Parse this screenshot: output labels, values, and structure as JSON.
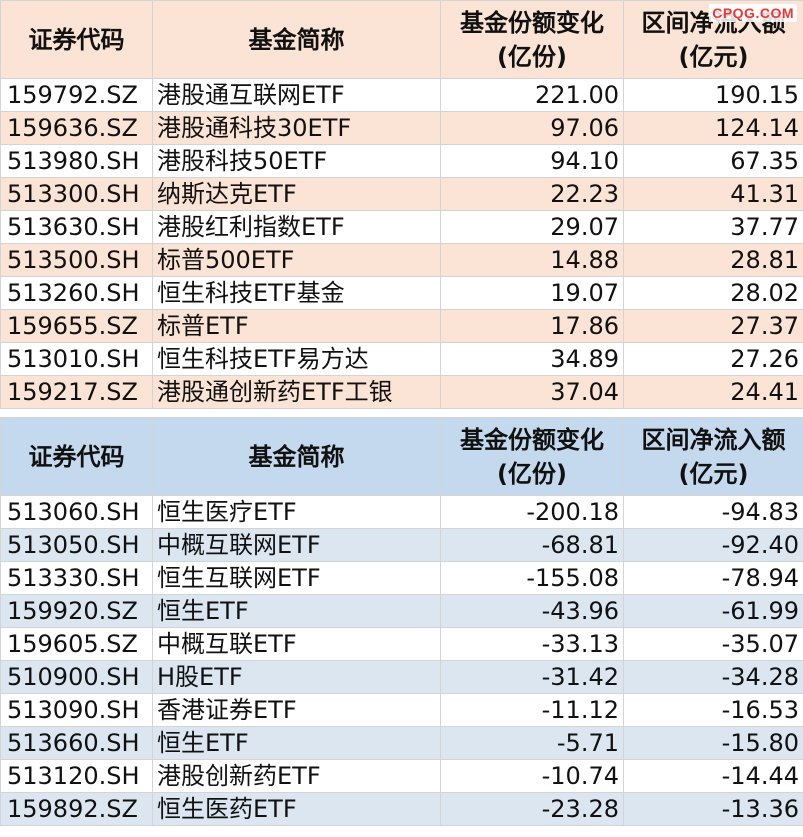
{
  "watermark": "CPQG.COM",
  "headers": {
    "code": "证券代码",
    "name": "基金简称",
    "share_change_l1": "基金份额变化",
    "share_change_l2": "(亿份)",
    "net_flow_l1": "区间净流入额",
    "net_flow_l2": "(亿元)"
  },
  "inflow": [
    {
      "code": "159792.SZ",
      "name": "港股通互联网ETF",
      "share_change": "221.00",
      "net_flow": "190.15"
    },
    {
      "code": "159636.SZ",
      "name": "港股通科技30ETF",
      "share_change": "97.06",
      "net_flow": "124.14"
    },
    {
      "code": "513980.SH",
      "name": "港股科技50ETF",
      "share_change": "94.10",
      "net_flow": "67.35"
    },
    {
      "code": "513300.SH",
      "name": "纳斯达克ETF",
      "share_change": "22.23",
      "net_flow": "41.31"
    },
    {
      "code": "513630.SH",
      "name": "港股红利指数ETF",
      "share_change": "29.07",
      "net_flow": "37.77"
    },
    {
      "code": "513500.SH",
      "name": "标普500ETF",
      "share_change": "14.88",
      "net_flow": "28.81"
    },
    {
      "code": "513260.SH",
      "name": "恒生科技ETF基金",
      "share_change": "19.07",
      "net_flow": "28.02"
    },
    {
      "code": "159655.SZ",
      "name": "标普ETF",
      "share_change": "17.86",
      "net_flow": "27.37"
    },
    {
      "code": "513010.SH",
      "name": "恒生科技ETF易方达",
      "share_change": "34.89",
      "net_flow": "27.26"
    },
    {
      "code": "159217.SZ",
      "name": "港股通创新药ETF工银",
      "share_change": "37.04",
      "net_flow": "24.41"
    }
  ],
  "outflow": [
    {
      "code": "513060.SH",
      "name": "恒生医疗ETF",
      "share_change": "-200.18",
      "net_flow": "-94.83"
    },
    {
      "code": "513050.SH",
      "name": "中概互联网ETF",
      "share_change": "-68.81",
      "net_flow": "-92.40"
    },
    {
      "code": "513330.SH",
      "name": "恒生互联网ETF",
      "share_change": "-155.08",
      "net_flow": "-78.94"
    },
    {
      "code": "159920.SZ",
      "name": "恒生ETF",
      "share_change": "-43.96",
      "net_flow": "-61.99"
    },
    {
      "code": "159605.SZ",
      "name": "中概互联ETF",
      "share_change": "-33.13",
      "net_flow": "-35.07"
    },
    {
      "code": "510900.SH",
      "name": "H股ETF",
      "share_change": "-31.42",
      "net_flow": "-34.28"
    },
    {
      "code": "513090.SH",
      "name": "香港证券ETF",
      "share_change": "-11.12",
      "net_flow": "-16.53"
    },
    {
      "code": "513660.SH",
      "name": "恒生ETF",
      "share_change": "-5.71",
      "net_flow": "-15.80"
    },
    {
      "code": "513120.SH",
      "name": "港股创新药ETF",
      "share_change": "-10.74",
      "net_flow": "-14.44"
    },
    {
      "code": "159892.SZ",
      "name": "恒生医药ETF",
      "share_change": "-23.28",
      "net_flow": "-13.36"
    }
  ]
}
